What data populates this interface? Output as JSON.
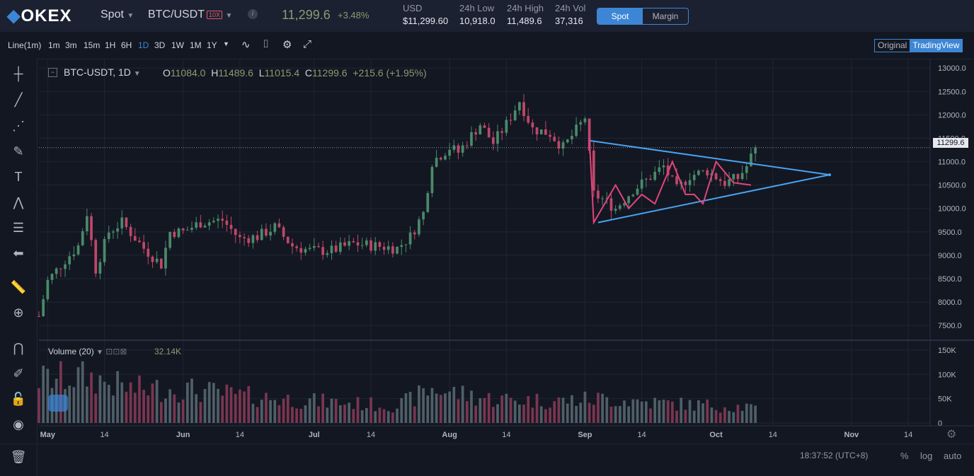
{
  "header": {
    "logo_text": "OKEX",
    "market_type": "Spot",
    "pair": "BTC/USDT",
    "leverage_badge": "10X",
    "info_icon": "info-icon",
    "last_price": "11,299.6",
    "change_pct": "+3.48%",
    "stats": [
      {
        "label": "USD",
        "value": "$11,299.60"
      },
      {
        "label": "24h Low",
        "value": "10,918.0"
      },
      {
        "label": "24h High",
        "value": "11,489.6"
      },
      {
        "label": "24h Vol",
        "value": "37,316"
      }
    ],
    "mode_tabs": [
      "Spot",
      "Margin"
    ],
    "active_mode": "Spot"
  },
  "toolbar": {
    "timeframes": [
      "Line(1m)",
      "1m",
      "3m",
      "15m",
      "1H",
      "6H",
      "1D",
      "3D",
      "1W",
      "1M",
      "1Y"
    ],
    "active_timeframe": "1D",
    "icons": [
      "chevron-down-icon",
      "indicator-icon",
      "camera-icon",
      "gear-icon",
      "fullscreen-icon"
    ],
    "view_tabs": [
      "Original",
      "TradingView"
    ],
    "active_view": "TradingView"
  },
  "left_tools": [
    "crosshair-icon",
    "trend-line-icon",
    "pitchfork-icon",
    "brush-icon",
    "text-icon",
    "pattern-icon",
    "fib-icon",
    "back-arrow-icon",
    "ruler-icon",
    "zoom-in-icon",
    "magnet-icon",
    "lock-drawing-icon",
    "unlock-icon",
    "eye-icon",
    "trash-icon"
  ],
  "legend": {
    "symbol": "BTC-USDT, 1D",
    "open_label": "O",
    "open": "11084.0",
    "high_label": "H",
    "high": "11489.6",
    "low_label": "L",
    "low": "11015.4",
    "close_label": "C",
    "close": "11299.6",
    "change": "+215.6 (+1.95%)"
  },
  "volume_legend": {
    "label": "Volume (20)",
    "value": "32.14K"
  },
  "price_tag": "11299.6",
  "price_axis": [
    "13000.0",
    "12500.0",
    "12000.0",
    "11500.0",
    "11000.0",
    "10500.0",
    "10000.0",
    "9500.0",
    "9000.0",
    "8500.0",
    "8000.0",
    "7500.0"
  ],
  "volume_axis": [
    "150K",
    "100K",
    "50K",
    "0"
  ],
  "time_axis": [
    "May",
    "14",
    "Jun",
    "14",
    "Jul",
    "14",
    "Aug",
    "14",
    "Sep",
    "14",
    "Oct",
    "14",
    "Nov",
    "14"
  ],
  "footer": {
    "clock": "18:37:52 (UTC+8)",
    "percent": "%",
    "log": "log",
    "auto": "auto"
  },
  "chart_data": {
    "type": "candlestick",
    "symbol": "BTC-USDT",
    "interval": "1D",
    "ylim": [
      7200,
      13200
    ],
    "volume_ylim": [
      0,
      160000
    ],
    "x_range": [
      "Apr 29",
      "Nov 19"
    ],
    "price_keypoints": [
      [
        "Apr 29",
        7700
      ],
      [
        "May 1",
        8450
      ],
      [
        "May 5",
        8900
      ],
      [
        "May 8",
        9200
      ],
      [
        "May 10",
        9900
      ],
      [
        "May 12",
        8700
      ],
      [
        "May 15",
        9500
      ],
      [
        "May 18",
        9700
      ],
      [
        "May 23",
        9150
      ],
      [
        "May 27",
        8800
      ],
      [
        "May 29",
        9500
      ],
      [
        "Jun 1",
        9500
      ],
      [
        "Jun 5",
        9700
      ],
      [
        "Jun 10",
        9750
      ],
      [
        "Jun 14",
        9350
      ],
      [
        "Jun 18",
        9400
      ],
      [
        "Jun 22",
        9600
      ],
      [
        "Jun 26",
        9200
      ],
      [
        "Jun 30",
        9100
      ],
      [
        "Jul 5",
        9100
      ],
      [
        "Jul 10",
        9250
      ],
      [
        "Jul 15",
        9200
      ],
      [
        "Jul 20",
        9150
      ],
      [
        "Jul 23",
        9400
      ],
      [
        "Jul 26",
        9900
      ],
      [
        "Jul 28",
        11000
      ],
      [
        "Aug 1",
        11300
      ],
      [
        "Aug 3",
        11200
      ],
      [
        "Aug 8",
        11800
      ],
      [
        "Aug 11",
        11400
      ],
      [
        "Aug 14",
        11800
      ],
      [
        "Aug 17",
        12300
      ],
      [
        "Aug 20",
        11700
      ],
      [
        "Aug 24",
        11600
      ],
      [
        "Aug 27",
        11300
      ],
      [
        "Aug 31",
        11800
      ],
      [
        "Sep 1",
        11950
      ],
      [
        "Sep 3",
        10300
      ],
      [
        "Sep 5",
        10200
      ],
      [
        "Sep 8",
        10000
      ],
      [
        "Sep 12",
        10400
      ],
      [
        "Sep 15",
        10600
      ],
      [
        "Sep 19",
        10900
      ],
      [
        "Sep 22",
        10400
      ],
      [
        "Sep 25",
        10700
      ],
      [
        "Sep 29",
        10800
      ],
      [
        "Oct 3",
        10550
      ],
      [
        "Oct 6",
        10650
      ],
      [
        "Oct 8",
        10900
      ],
      [
        "Oct 10",
        11299.6
      ]
    ],
    "volume_keypoints": [
      [
        "Apr 29",
        90000
      ],
      [
        "May 10",
        95000
      ],
      [
        "May 20",
        70000
      ],
      [
        "Jun 1",
        70000
      ],
      [
        "Jun 15",
        55000
      ],
      [
        "Jul 1",
        45000
      ],
      [
        "Jul 20",
        35000
      ],
      [
        "Jul 28",
        70000
      ],
      [
        "Aug 10",
        50000
      ],
      [
        "Aug 25",
        45000
      ],
      [
        "Sep 5",
        50000
      ],
      [
        "Sep 20",
        40000
      ],
      [
        "Oct 10",
        32140
      ]
    ],
    "drawings": [
      {
        "type": "triangle-upper",
        "color": "#4aa3f0",
        "points": [
          [
            "Sep 2",
            11450
          ],
          [
            "Oct 27",
            10720
          ]
        ]
      },
      {
        "type": "triangle-lower",
        "color": "#4aa3f0",
        "points": [
          [
            "Sep 4",
            9700
          ],
          [
            "Oct 27",
            10720
          ]
        ]
      },
      {
        "type": "zigzag",
        "color": "#e0457b",
        "points": [
          [
            "Sep 2",
            11500
          ],
          [
            "Sep 3",
            9700
          ],
          [
            "Sep 8",
            10500
          ],
          [
            "Sep 11",
            10000
          ],
          [
            "Sep 14",
            10300
          ],
          [
            "Sep 17",
            10100
          ],
          [
            "Sep 21",
            11000
          ],
          [
            "Sep 24",
            10300
          ],
          [
            "Sep 26",
            10300
          ],
          [
            "Sep 28",
            10100
          ],
          [
            "Oct 1",
            11000
          ],
          [
            "Oct 5",
            10550
          ],
          [
            "Oct 9",
            10500
          ]
        ]
      }
    ],
    "up_color": "#4a8a6a",
    "down_color": "#c0476a",
    "volume_up_color": "#4f5f68",
    "volume_down_color": "#7a3650"
  }
}
